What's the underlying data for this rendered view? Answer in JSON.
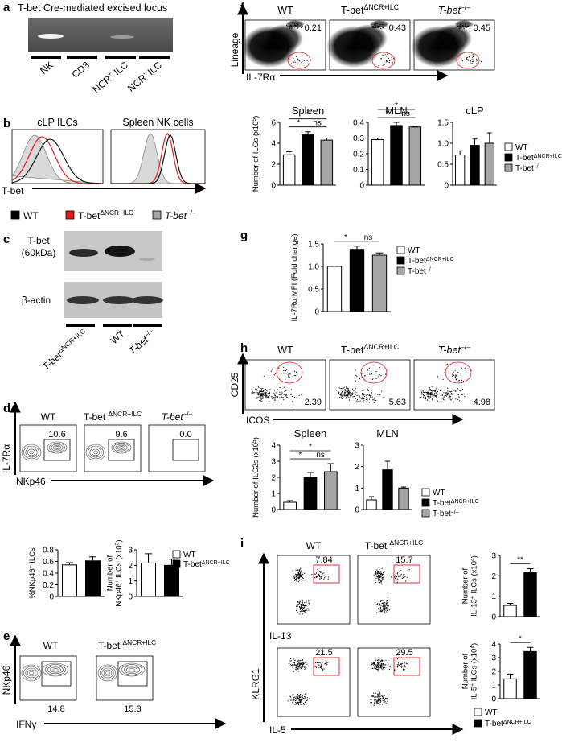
{
  "panel_a": {
    "letter": "a",
    "title": "T-bet Cre-mediated excised locus",
    "lanes": [
      "NK",
      "CD3",
      [
        "NCR",
        "+",
        " ILC"
      ],
      [
        "NCR",
        "-",
        " ILC"
      ]
    ]
  },
  "panel_b": {
    "letter": "b",
    "plots": [
      "cLP ILCs",
      "Spleen NK cells"
    ],
    "axis": "T-bet",
    "legend": [
      {
        "name": "WT",
        "color": "#000000"
      },
      {
        "name": [
          "T-bet",
          "ΔNCR+ILC"
        ],
        "color": "#e31a1c"
      },
      {
        "name": [
          "T-bet",
          "–/–"
        ],
        "color": "#a6a6a6"
      }
    ]
  },
  "panel_c": {
    "letter": "c",
    "protein": "T-bet",
    "size": "(60kDa)",
    "loading": "β-actin",
    "lanes": [
      [
        "T-bet",
        "ΔNCR+ILC"
      ],
      "WT",
      [
        "T-bet",
        "–/–"
      ]
    ]
  },
  "panel_d": {
    "letter": "d",
    "plots": [
      {
        "title": "WT",
        "gate": "10.6"
      },
      {
        "title": [
          "T-bet ",
          "ΔNCR+ILC"
        ],
        "gate": "9.6"
      },
      {
        "title": [
          "T-bet",
          "–/–"
        ],
        "gate": "0.0"
      }
    ],
    "y_axis": "IL-7Rα",
    "x_axis": "NKp46",
    "legend": [
      {
        "name": "WT",
        "color": "#ffffff"
      },
      {
        "name": [
          "T-bet",
          "ΔNCR+ILC"
        ],
        "color": "#000000"
      }
    ],
    "charts": [
      {
        "ylabel": [
          [
            "%NKp46",
            "+",
            " ILCs"
          ]
        ],
        "ylim": [
          0,
          0.8
        ],
        "yticks": [
          0,
          0.2,
          0.4,
          0.6,
          0.8
        ],
        "values": [
          0.54,
          0.61
        ],
        "errors": [
          0.04,
          0.07
        ]
      },
      {
        "ylabel": [
          "Number of",
          [
            "NKp46",
            "+",
            " ILCs (x10",
            "3",
            ")"
          ]
        ],
        "ylim": [
          0,
          3
        ],
        "yticks": [
          0,
          1,
          2,
          3
        ],
        "values": [
          2.15,
          2.0
        ],
        "errors": [
          0.6,
          0.4
        ]
      }
    ]
  },
  "panel_e": {
    "letter": "e",
    "plots": [
      {
        "title": "WT",
        "gate": "14.8"
      },
      {
        "title": [
          "T-bet ",
          "ΔNCR+ILC"
        ],
        "gate": "15.3"
      }
    ],
    "y_axis": "NKp46",
    "x_axis": "IFNγ"
  },
  "panel_f": {
    "letter": "f",
    "plots": [
      {
        "title": "WT",
        "gate": "0.21"
      },
      {
        "title": [
          "T-bet",
          "ΔNCR+ILC"
        ],
        "gate": "0.43"
      },
      {
        "title": [
          "T-bet",
          "–/–"
        ],
        "gate": "0.45"
      }
    ],
    "y_axis": "Lineage",
    "x_axis": "IL-7Rα",
    "legend": [
      {
        "name": "WT",
        "color": "#ffffff"
      },
      {
        "name": [
          "T-bet",
          "ΔNCR+ILC"
        ],
        "color": "#000000"
      },
      {
        "name": [
          "T-bet",
          "–/–"
        ],
        "color": "#a6a6a6"
      }
    ],
    "charts": [
      {
        "title": "Spleen",
        "ylabel": [
          [
            "Number of ILCs (x10",
            "5",
            ")"
          ]
        ],
        "ylim": [
          0,
          6
        ],
        "yticks": [
          0,
          2,
          4,
          6
        ],
        "values": [
          2.9,
          4.8,
          4.3
        ],
        "errors": [
          0.3,
          0.3,
          0.2
        ],
        "significance": [
          "*",
          "*",
          "ns"
        ]
      },
      {
        "title": "MLN",
        "ylim": [
          0,
          0.4
        ],
        "yticks": [
          0,
          0.1,
          0.2,
          0.3,
          0.4
        ],
        "values": [
          0.29,
          0.38,
          0.37
        ],
        "errors": [
          0.01,
          0.02,
          0.005
        ],
        "significance": [
          "*",
          "*",
          "ns"
        ]
      },
      {
        "title": "cLP",
        "ylim": [
          0,
          1.5
        ],
        "yticks": [
          0,
          0.5,
          {
            "value": 1,
            "label": "1.0"
          },
          1.5
        ],
        "values": [
          0.72,
          0.95,
          1.0
        ],
        "errors": [
          0.1,
          0.15,
          0.25
        ]
      }
    ]
  },
  "panel_g": {
    "letter": "g",
    "legend": [
      {
        "name": "WT",
        "color": "#ffffff"
      },
      {
        "name": [
          "T-bet",
          "ΔNCR+ILC"
        ],
        "color": "#000000"
      },
      {
        "name": [
          "T-bet",
          "–/–"
        ],
        "color": "#a6a6a6"
      }
    ],
    "charts": [
      {
        "ylabel": [
          "IL-7Rα MFI (Fold change)"
        ],
        "ylim": [
          0,
          1.5
        ],
        "yticks": [
          0,
          0.5,
          {
            "value": 1,
            "label": "1.0"
          },
          1.5
        ],
        "values": [
          1.0,
          1.38,
          1.25
        ],
        "errors": [
          0.01,
          0.07,
          0.05
        ],
        "significance": [
          "*",
          "ns"
        ]
      }
    ]
  },
  "panel_h": {
    "letter": "h",
    "plots": [
      {
        "title": "WT",
        "gate": "2.39"
      },
      {
        "title": [
          "T-bet",
          "ΔNCR+ILC"
        ],
        "gate": "5.63"
      },
      {
        "title": [
          "T-bet",
          "–/–"
        ],
        "gate": "4.98"
      }
    ],
    "y_axis": "CD25",
    "x_axis": "ICOS",
    "legend": [
      {
        "name": "WT",
        "color": "#ffffff"
      },
      {
        "name": [
          "T-bet",
          "ΔNCR+ILC"
        ],
        "color": "#000000"
      },
      {
        "name": [
          "T-bet",
          "–/–"
        ],
        "color": "#a6a6a6"
      }
    ],
    "charts": [
      {
        "title": "Spleen",
        "ylabel": [
          [
            "Number of ILC2s (x10",
            "5",
            ")"
          ]
        ],
        "ylim": [
          0,
          4
        ],
        "yticks": [
          0,
          1,
          2,
          3,
          4
        ],
        "values": [
          0.45,
          2.0,
          2.35
        ],
        "errors": [
          0.1,
          0.3,
          0.5
        ],
        "significance": [
          "*",
          "*",
          "ns"
        ]
      },
      {
        "title": "MLN",
        "ylim": [
          0,
          3
        ],
        "yticks": [
          0,
          1,
          2,
          3
        ],
        "values": [
          0.45,
          1.85,
          1.0
        ],
        "errors": [
          0.15,
          0.4,
          0.05
        ]
      }
    ]
  },
  "panel_i": {
    "letter": "i",
    "plots": [
      {
        "title": "WT",
        "gate": "7.84"
      },
      {
        "title": [
          "T-bet ",
          "ΔNCR+ILC"
        ],
        "gate": "15.7"
      },
      {
        "gate": "21.5"
      },
      {
        "gate": "29.5"
      }
    ],
    "y_axis": "KLRG1",
    "x_axis_top": "IL-13",
    "x_axis_bottom": "IL-5",
    "legend": [
      {
        "name": "WT",
        "color": "#ffffff"
      },
      {
        "name": [
          "T-bet",
          "ΔNCR+ILC"
        ],
        "color": "#000000"
      }
    ],
    "charts": [
      {
        "ylabel": [
          "Number of",
          [
            "IL-13",
            "+",
            " ILCs (x10",
            "4",
            ")"
          ]
        ],
        "ylim": [
          0,
          3
        ],
        "yticks": [
          0,
          1,
          2,
          3
        ],
        "values": [
          0.55,
          2.15
        ],
        "errors": [
          0.1,
          0.2
        ],
        "significance": [
          "**"
        ]
      },
      {
        "ylabel": [
          "Number of",
          [
            "IL-5",
            "+",
            " ILCs (x10",
            "4",
            ")"
          ]
        ],
        "ylim": [
          0,
          4
        ],
        "yticks": [
          0,
          1,
          2,
          3,
          4
        ],
        "values": [
          1.45,
          3.45
        ],
        "errors": [
          0.35,
          0.3
        ],
        "significance": [
          "*"
        ]
      }
    ]
  }
}
